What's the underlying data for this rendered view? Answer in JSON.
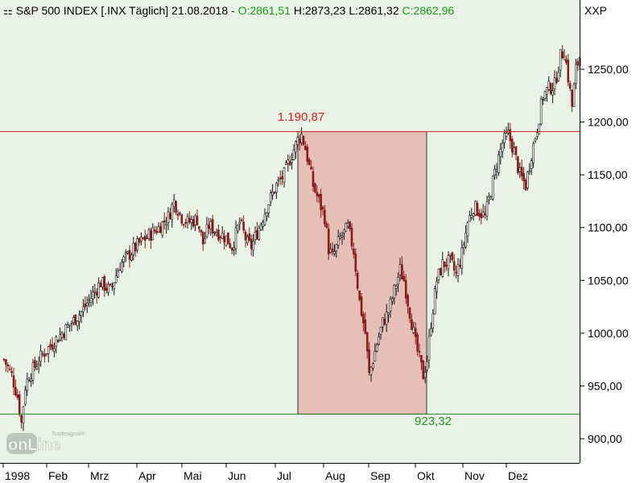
{
  "header": {
    "instrument": "S&P 500 INDEX [.INX  Täglich] 21.08.2018",
    "separator": " - ",
    "open": "O:2861,51",
    "high": "H:2873,23",
    "low": "L:2861,32",
    "close": "C:2862,96",
    "symbol": "XXP"
  },
  "watermark": {
    "brand": "onLine",
    "tag": "Tradesignal®"
  },
  "colors": {
    "plot_bg": "#e8f3e6",
    "up": "#111111",
    "down": "#8b1a1a",
    "resistance": "#d02020",
    "support": "#2a8a2a",
    "box_fill": "#e6bfb7",
    "box_stroke": "#333333",
    "close_green": "#1a9a1a"
  },
  "annotations": {
    "high_label": "1.190,87",
    "low_label": "923,32"
  },
  "chart_data": {
    "type": "candlestick",
    "title": "S&P 500 INDEX [.INX  Täglich] 21.08.2018",
    "yaxis_ticks": [
      "900,00",
      "950,00",
      "1000,00",
      "1050,00",
      "1100,00",
      "1150,00",
      "1200,00",
      "1250,00"
    ],
    "yaxis_tick_values": [
      900,
      950,
      1000,
      1050,
      1100,
      1150,
      1200,
      1250
    ],
    "ylim": [
      875,
      1287
    ],
    "xaxis_ticks": [
      "1998",
      "Feb",
      "Mrz",
      "Apr",
      "Mai",
      "Jun",
      "Jul",
      "Aug",
      "Sep",
      "Okt",
      "Nov",
      "Dez"
    ],
    "horizontal_lines": [
      {
        "label": "1.190,87",
        "value": 1190.87
      },
      {
        "label": "923,32",
        "value": 923.32
      }
    ],
    "highlight_box": {
      "from": "Jul",
      "to": "Okt",
      "top": 1190.87,
      "bottom": 923.32
    },
    "close_path": [
      [
        0,
        975
      ],
      [
        4,
        960
      ],
      [
        7,
        940
      ],
      [
        9,
        915
      ],
      [
        11,
        950
      ],
      [
        13,
        960
      ],
      [
        20,
        980
      ],
      [
        30,
        1000
      ],
      [
        40,
        1020
      ],
      [
        50,
        1048
      ],
      [
        55,
        1040
      ],
      [
        60,
        1065
      ],
      [
        70,
        1085
      ],
      [
        80,
        1100
      ],
      [
        85,
        1110
      ],
      [
        88,
        1125
      ],
      [
        92,
        1110
      ],
      [
        95,
        1105
      ],
      [
        100,
        1108
      ],
      [
        103,
        1085
      ],
      [
        106,
        1102
      ],
      [
        115,
        1090
      ],
      [
        118,
        1082
      ],
      [
        122,
        1105
      ],
      [
        126,
        1085
      ],
      [
        128,
        1082
      ],
      [
        132,
        1100
      ],
      [
        136,
        1120
      ],
      [
        141,
        1140
      ],
      [
        145,
        1150
      ],
      [
        148,
        1165
      ],
      [
        152,
        1183
      ],
      [
        154,
        1188
      ],
      [
        156,
        1175
      ],
      [
        160,
        1140
      ],
      [
        163,
        1125
      ],
      [
        166,
        1110
      ],
      [
        168,
        1080
      ],
      [
        170,
        1072
      ],
      [
        174,
        1090
      ],
      [
        178,
        1100
      ],
      [
        181,
        1078
      ],
      [
        184,
        1030
      ],
      [
        187,
        1000
      ],
      [
        189,
        960
      ],
      [
        191,
        975
      ],
      [
        193,
        990
      ],
      [
        196,
        1010
      ],
      [
        199,
        1020
      ],
      [
        202,
        1040
      ],
      [
        205,
        1060
      ],
      [
        207,
        1050
      ],
      [
        210,
        1020
      ],
      [
        213,
        990
      ],
      [
        215,
        975
      ],
      [
        217,
        960
      ],
      [
        219,
        975
      ],
      [
        221,
        1010
      ],
      [
        224,
        1050
      ],
      [
        227,
        1065
      ],
      [
        231,
        1068
      ],
      [
        234,
        1055
      ],
      [
        237,
        1075
      ],
      [
        240,
        1105
      ],
      [
        243,
        1120
      ],
      [
        246,
        1115
      ],
      [
        249,
        1110
      ],
      [
        252,
        1135
      ],
      [
        255,
        1160
      ],
      [
        258,
        1180
      ],
      [
        261,
        1188
      ],
      [
        264,
        1172
      ],
      [
        267,
        1150
      ],
      [
        270,
        1140
      ],
      [
        273,
        1170
      ],
      [
        276,
        1195
      ],
      [
        279,
        1225
      ],
      [
        282,
        1232
      ],
      [
        285,
        1235
      ],
      [
        288,
        1262
      ],
      [
        290,
        1268
      ],
      [
        292,
        1242
      ],
      [
        294,
        1215
      ],
      [
        296,
        1250
      ],
      [
        298,
        1262
      ]
    ],
    "total_bars": 299
  }
}
